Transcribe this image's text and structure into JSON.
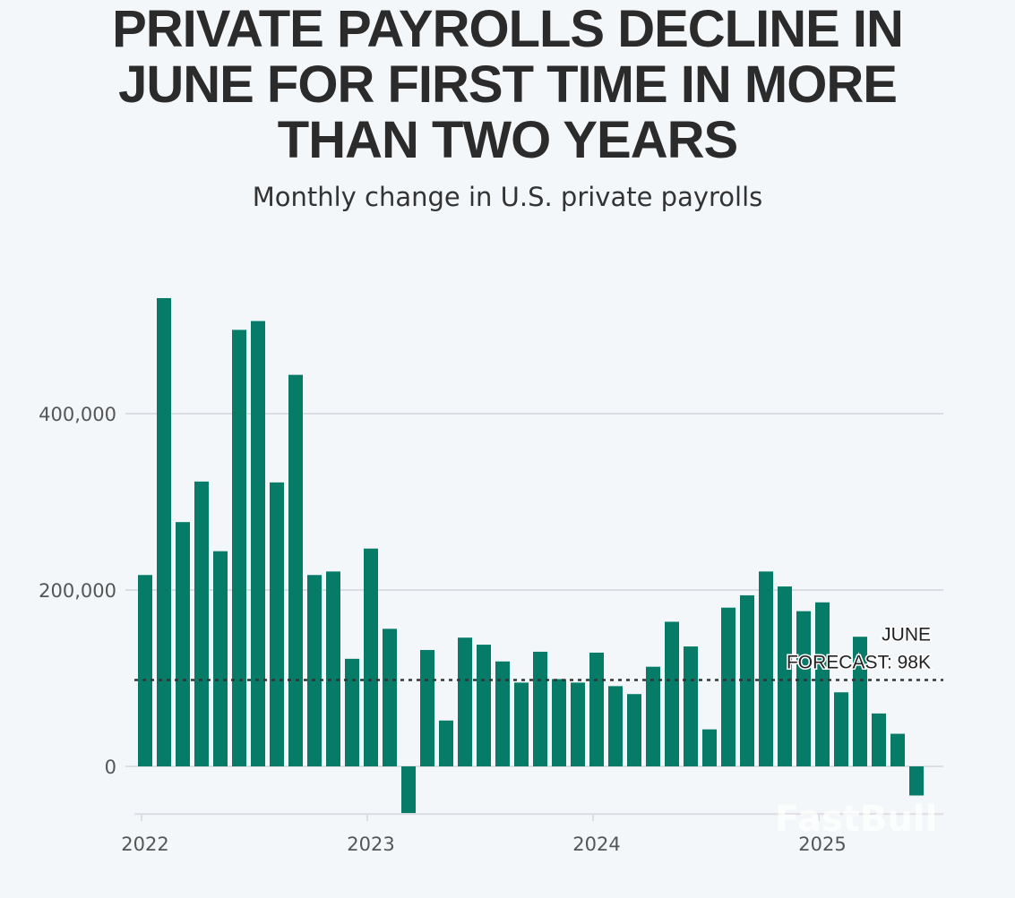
{
  "chart_data": {
    "type": "bar",
    "title_lines": [
      "PRIVATE PAYROLLS DECLINE IN",
      "JUNE FOR FIRST TIME IN MORE",
      "THAN TWO YEARS"
    ],
    "subtitle": "Monthly change in U.S. private payrolls",
    "xlabel": "",
    "ylabel": "",
    "ylim": [
      -54000,
      540000
    ],
    "yticks": [
      0,
      200000,
      400000
    ],
    "ytick_labels": [
      "0",
      "200,000",
      "400,000"
    ],
    "xtick_labels": [
      "2022",
      "2023",
      "2024",
      "2025"
    ],
    "grid": true,
    "categories": [
      "2022-01",
      "2022-02",
      "2022-03",
      "2022-04",
      "2022-05",
      "2022-06",
      "2022-07",
      "2022-08",
      "2022-09",
      "2022-10",
      "2022-11",
      "2022-12",
      "2023-01",
      "2023-02",
      "2023-03",
      "2023-04",
      "2023-05",
      "2023-06",
      "2023-07",
      "2023-08",
      "2023-09",
      "2023-10",
      "2023-11",
      "2023-12",
      "2024-01",
      "2024-02",
      "2024-03",
      "2024-04",
      "2024-05",
      "2024-06",
      "2024-07",
      "2024-08",
      "2024-09",
      "2024-10",
      "2024-11",
      "2024-12",
      "2025-01",
      "2025-02",
      "2025-03",
      "2025-04",
      "2025-05",
      "2025-06"
    ],
    "values": [
      217000,
      531000,
      277000,
      323000,
      244000,
      495000,
      505000,
      322000,
      444000,
      217000,
      221000,
      122000,
      247000,
      156000,
      -53000,
      132000,
      52000,
      146000,
      138000,
      119000,
      95000,
      130000,
      99000,
      95000,
      129000,
      91000,
      82000,
      113000,
      164000,
      136000,
      42000,
      180000,
      194000,
      221000,
      204000,
      176000,
      186000,
      84000,
      147000,
      60000,
      37000,
      -33000
    ],
    "reference_line": {
      "value": 98000,
      "style": "dotted",
      "label_lines": [
        "JUNE",
        "FORECAST: 98K"
      ]
    },
    "colors": {
      "bar": "#067b68",
      "grid": "#dcdce2",
      "reference": "#333333",
      "background": "#f4f7fa"
    }
  },
  "watermark": "FastBull"
}
